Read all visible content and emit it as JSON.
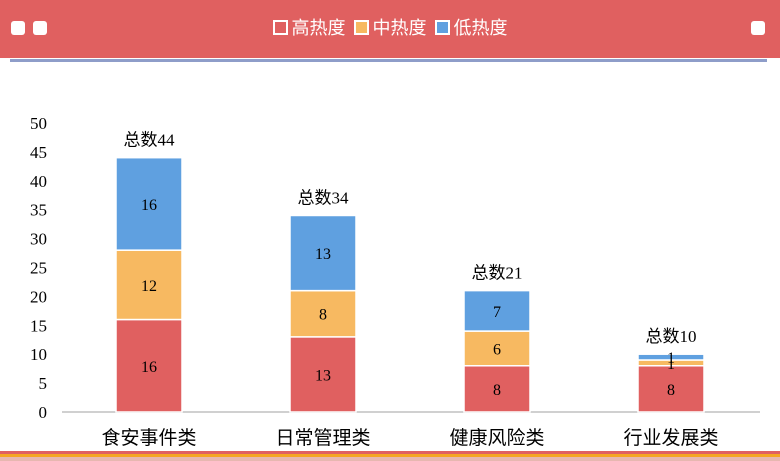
{
  "legend": {
    "high": "高热度",
    "mid": "中热度",
    "low": "低热度"
  },
  "colors": {
    "header_bg": "#e06060",
    "high": "#e06060",
    "mid": "#f7b961",
    "low": "#5fa0e0"
  },
  "chart_data": {
    "type": "bar",
    "stacked": true,
    "categories": [
      "食安事件类",
      "日常管理类",
      "健康风险类",
      "行业发展类"
    ],
    "series": [
      {
        "name": "高热度",
        "values": [
          16,
          13,
          8,
          8
        ]
      },
      {
        "name": "中热度",
        "values": [
          12,
          8,
          6,
          1
        ]
      },
      {
        "name": "低热度",
        "values": [
          16,
          13,
          7,
          1
        ]
      }
    ],
    "totals": [
      44,
      34,
      21,
      10
    ],
    "total_labels": [
      "总数44",
      "总数34",
      "总数21",
      "总数10"
    ],
    "y_ticks": [
      0,
      5,
      10,
      15,
      20,
      25,
      30,
      35,
      40,
      45,
      50
    ],
    "ylim": [
      0,
      50
    ],
    "grid": false,
    "legend_position": "top-center"
  }
}
